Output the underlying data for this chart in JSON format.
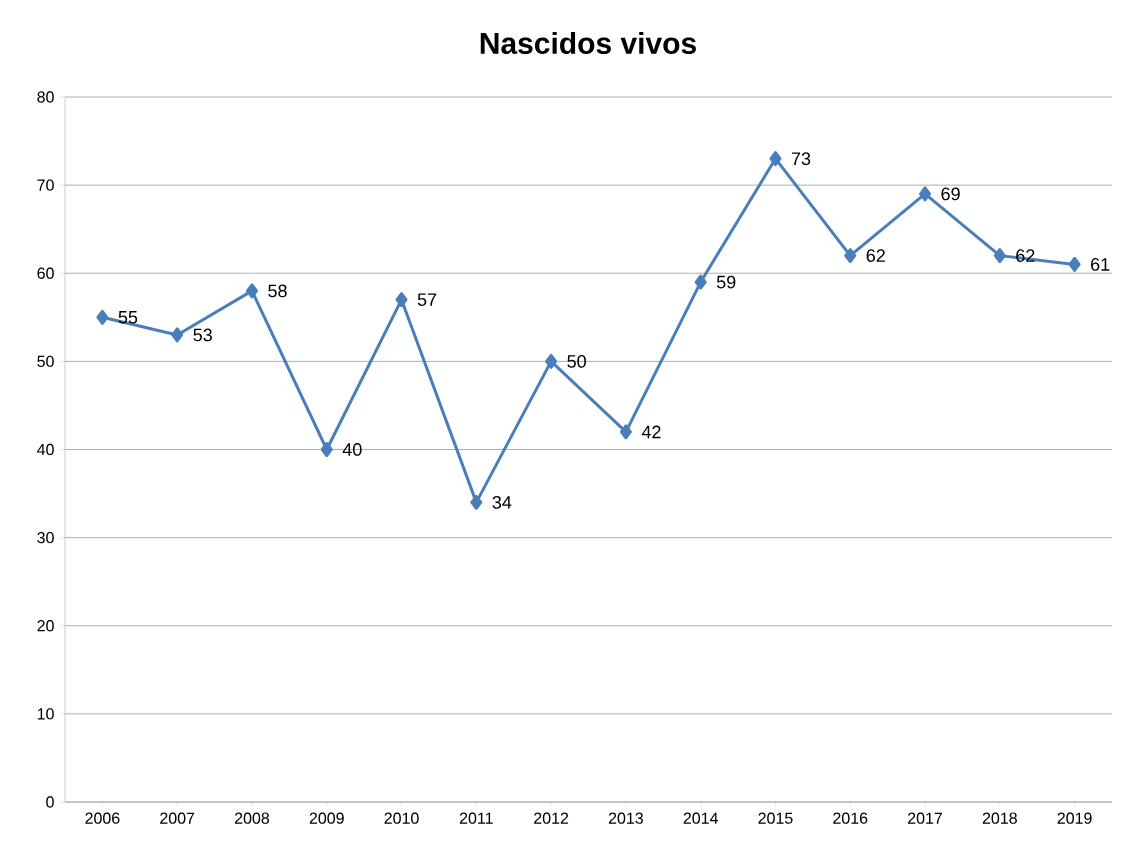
{
  "chart_data": {
    "type": "line",
    "title": "Nascidos vivos",
    "categories": [
      "2006",
      "2007",
      "2008",
      "2009",
      "2010",
      "2011",
      "2012",
      "2013",
      "2014",
      "2015",
      "2016",
      "2017",
      "2018",
      "2019"
    ],
    "values": [
      55,
      53,
      58,
      40,
      57,
      34,
      50,
      42,
      59,
      73,
      62,
      69,
      62,
      61
    ],
    "color": "#4a7ebb",
    "marker": "diamond",
    "line_style": "solid",
    "ylim": [
      0,
      80
    ],
    "yticks": [
      0,
      10,
      20,
      30,
      40,
      50,
      60,
      70,
      80
    ],
    "grid": "y",
    "data_labels": true
  }
}
